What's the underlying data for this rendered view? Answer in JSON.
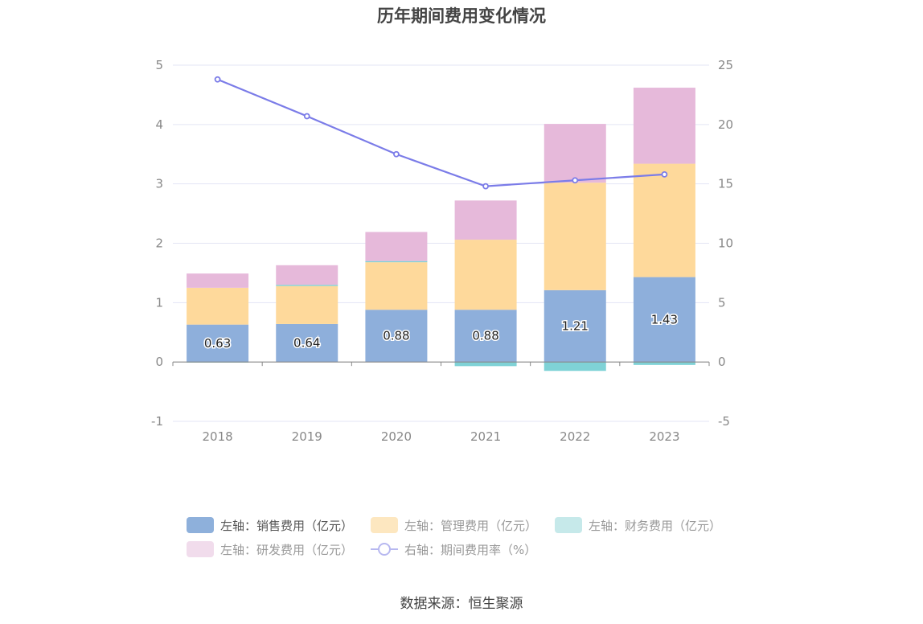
{
  "title": "历年期间费用变化情况",
  "source": "数据来源：恒生聚源",
  "legend": [
    {
      "label": "左轴：销售费用（亿元）",
      "color": "#8eb0db"
    },
    {
      "label": "左轴：管理费用（亿元）",
      "color": "#fde7c0"
    },
    {
      "label": "左轴：财务费用（亿元）",
      "color": "#c6e9ea"
    },
    {
      "label": "左轴：研发费用（亿元）",
      "color": "#f1dcec"
    },
    {
      "label": "右轴：期间费用率（%）",
      "color": "#7b7ce8"
    }
  ],
  "chart_data": {
    "type": "bar",
    "title": "历年期间费用变化情况",
    "categories": [
      "2018",
      "2019",
      "2020",
      "2021",
      "2022",
      "2023"
    ],
    "series": [
      {
        "name": "左轴：销售费用（亿元）",
        "axis": "left",
        "type": "bar",
        "color": "#8eafdb",
        "values": [
          0.63,
          0.64,
          0.88,
          0.88,
          1.21,
          1.43
        ],
        "data_labels": [
          "0.63",
          "0.64",
          "0.88",
          "0.88",
          "1.21",
          "1.43"
        ]
      },
      {
        "name": "左轴：管理费用（亿元）",
        "axis": "left",
        "type": "bar",
        "color": "#fed99b",
        "values": [
          0.62,
          0.64,
          0.8,
          1.18,
          1.81,
          1.91
        ]
      },
      {
        "name": "左轴：财务费用（亿元）",
        "axis": "left",
        "type": "bar",
        "color": "#7fd2d6",
        "values": [
          -0.01,
          0.02,
          0.02,
          -0.07,
          -0.15,
          -0.05
        ]
      },
      {
        "name": "左轴：研发费用（亿元）",
        "axis": "left",
        "type": "bar",
        "color": "#e6b9da",
        "values": [
          0.24,
          0.33,
          0.49,
          0.66,
          0.99,
          1.28
        ]
      },
      {
        "name": "右轴：期间费用率（%）",
        "axis": "right",
        "type": "line",
        "color": "#7b7ce8",
        "values": [
          23.8,
          20.7,
          17.5,
          14.8,
          15.3,
          15.8
        ]
      }
    ],
    "left_axis": {
      "ylim": [
        -1,
        5
      ],
      "ticks": [
        "-1",
        "0",
        "1",
        "2",
        "3",
        "4",
        "5"
      ]
    },
    "right_axis": {
      "ylim": [
        -5,
        25
      ],
      "ticks": [
        "-5",
        "0",
        "5",
        "10",
        "15",
        "20",
        "25"
      ]
    },
    "grid": true,
    "legend_position": "bottom"
  }
}
